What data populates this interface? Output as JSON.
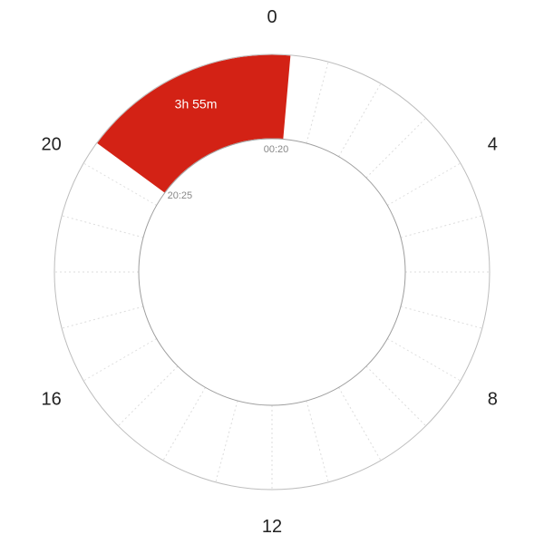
{
  "chart_data": {
    "type": "radial-clock",
    "hours_per_cycle": 24,
    "hour_labels": [
      "0",
      "4",
      "8",
      "12",
      "16",
      "20"
    ],
    "hour_label_values": [
      0,
      4,
      8,
      12,
      16,
      20
    ],
    "segments": [
      {
        "start": "20:25",
        "end": "00:20",
        "start_hours": 20.4167,
        "end_hours": 24.3333,
        "duration_label": "3h 55m",
        "start_label": "20:25",
        "end_label": "00:20",
        "color": "#d32215"
      }
    ],
    "grid": true
  }
}
